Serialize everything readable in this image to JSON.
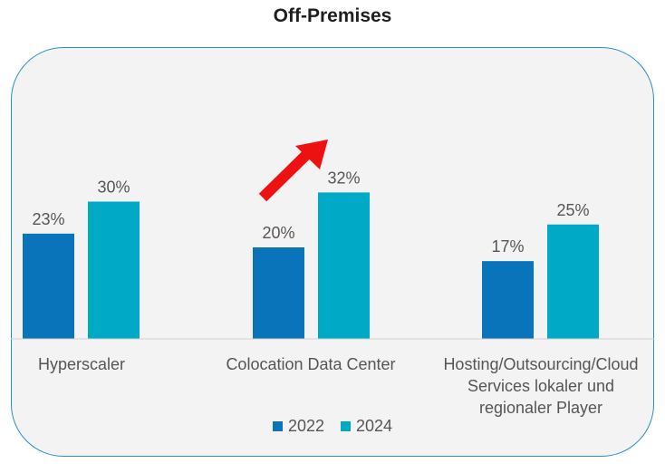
{
  "chart_data": {
    "type": "bar",
    "title": "Off-Premises",
    "categories": [
      "Hyperscaler",
      "Colocation Data Center",
      "Hosting/Outsourcing/Cloud Services lokaler und regionaler Player"
    ],
    "series": [
      {
        "name": "2022",
        "values": [
          23,
          20,
          17
        ],
        "color": "#0a74bb"
      },
      {
        "name": "2024",
        "values": [
          30,
          32,
          25
        ],
        "color": "#00a9c6"
      }
    ],
    "value_suffix": "%",
    "ylim": [
      0,
      35
    ],
    "grid": false,
    "legend": "bottom",
    "annotation": "red-upward-arrow-icon",
    "colors": {
      "panel_border": "#2a8fc8",
      "panel_bg": "#f3f3f3",
      "arrow": "#ee1111"
    }
  }
}
